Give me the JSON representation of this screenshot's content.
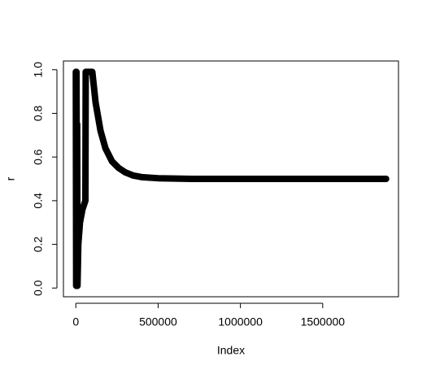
{
  "chart_data": {
    "type": "line",
    "xlabel": "Index",
    "ylabel": "r",
    "color": "#000000",
    "x": [
      0,
      2000,
      4000,
      6000,
      8000,
      10000,
      15000,
      25000,
      40000,
      58000,
      60000,
      100000,
      120000,
      150000,
      180000,
      220000,
      260000,
      300000,
      350000,
      400000,
      500000,
      700000,
      1000000,
      1500000,
      1885000
    ],
    "values": [
      0.99,
      0.01,
      0.99,
      0.3,
      0.75,
      0.01,
      0.2,
      0.3,
      0.36,
      0.4,
      0.99,
      0.99,
      0.85,
      0.72,
      0.64,
      0.58,
      0.55,
      0.53,
      0.515,
      0.508,
      0.503,
      0.5,
      0.5,
      0.5,
      0.5
    ],
    "xlim": [
      -75400,
      1960400
    ],
    "ylim": [
      -0.04,
      1.04
    ],
    "xticks": [
      0,
      500000,
      1000000,
      1500000
    ],
    "yticks": [
      {
        "value": 0,
        "label": "0.0"
      },
      {
        "value": 0.2,
        "label": "0.2"
      },
      {
        "value": 0.4,
        "label": "0.4"
      },
      {
        "value": 0.6,
        "label": "0.6"
      },
      {
        "value": 0.8,
        "label": "0.8"
      },
      {
        "value": 1,
        "label": "1.0"
      }
    ]
  }
}
